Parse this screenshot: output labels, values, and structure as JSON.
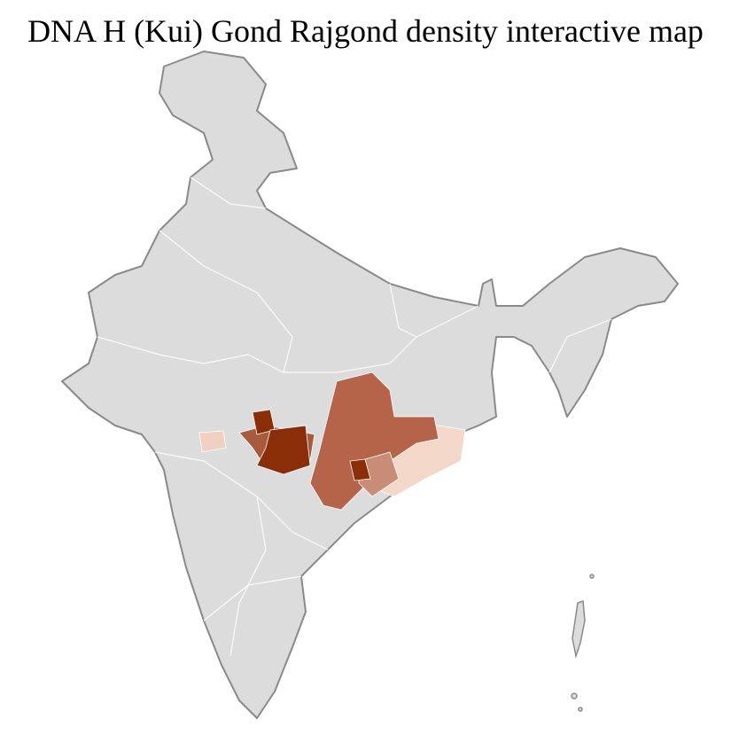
{
  "title": "DNA H (Kui) Gond Rajgond density interactive map"
}
